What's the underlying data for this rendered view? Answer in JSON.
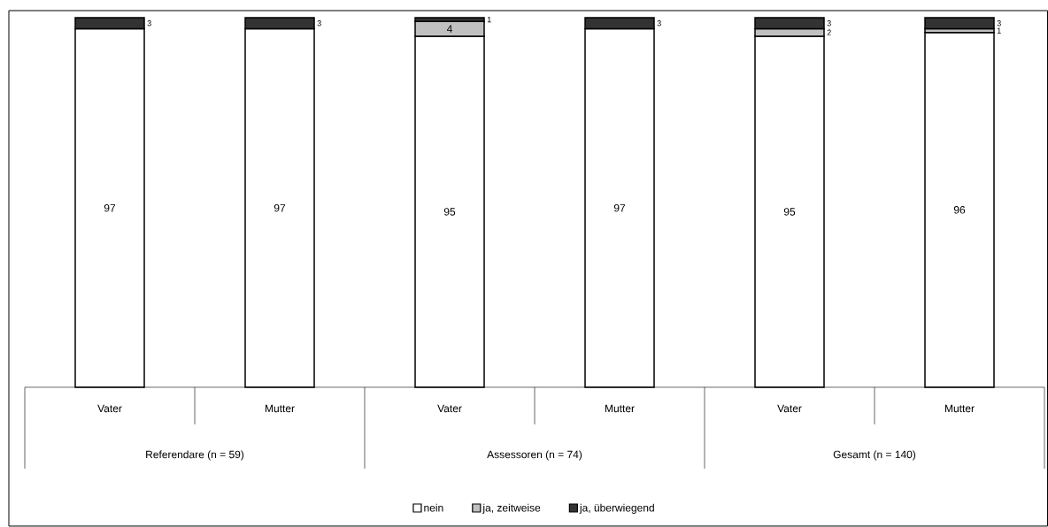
{
  "chart_data": {
    "type": "bar",
    "stacked": true,
    "categories": [
      "Vater",
      "Mutter",
      "Vater",
      "Mutter",
      "Vater",
      "Mutter"
    ],
    "series": [
      {
        "name": "nein",
        "color": "#ffffff",
        "values": [
          97,
          97,
          95,
          97,
          95,
          96
        ],
        "value_labels": [
          "97",
          "97",
          "95",
          "97",
          "95",
          "96"
        ]
      },
      {
        "name": "ja, zeitweise",
        "color": "#c0c0c0",
        "values": [
          0,
          0,
          4,
          0,
          2,
          1
        ],
        "value_labels": [
          null,
          null,
          "4",
          null,
          "2",
          "1"
        ]
      },
      {
        "name": "ja, überwiegend",
        "color": "#333333",
        "values": [
          3,
          3,
          1,
          3,
          3,
          3
        ],
        "value_labels": [
          "3",
          "3",
          "1",
          "3",
          "3",
          "3"
        ]
      }
    ],
    "annotations": [
      "Referendare (n = 59)",
      "Assessoren (n = 74)",
      "Gesamt (n = 140)"
    ],
    "legend": "bottom"
  }
}
